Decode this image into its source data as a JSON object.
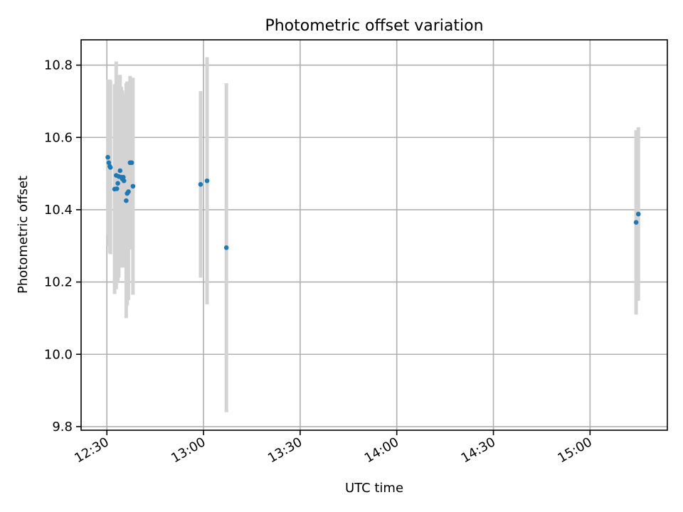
{
  "chart_data": {
    "type": "scatter",
    "title": "Photometric offset variation",
    "xlabel": "UTC time",
    "ylabel": "Photometric offset",
    "x_is_time": true,
    "xlim": [
      "12:22",
      "15:24"
    ],
    "ylim": [
      9.79,
      10.87
    ],
    "xticks": [
      "12:30",
      "13:00",
      "13:30",
      "14:00",
      "14:30",
      "15:00"
    ],
    "xtick_labels": [
      "12:30",
      "13:00",
      "13:30",
      "14:00",
      "14:30",
      "15:00"
    ],
    "yticks": [
      9.8,
      10.0,
      10.2,
      10.4,
      10.6,
      10.8
    ],
    "ytick_labels": [
      "9.8",
      "10.0",
      "10.2",
      "10.4",
      "10.6",
      "10.8"
    ],
    "grid": true,
    "marker_color": "#1f77b4",
    "errorbar_color": "#d3d3d3",
    "points": [
      {
        "x": "12:30:18",
        "y": 10.545,
        "err": 0.215
      },
      {
        "x": "12:30:36",
        "y": 10.53,
        "err": 0.23
      },
      {
        "x": "12:30:54",
        "y": 10.52,
        "err": 0.24
      },
      {
        "x": "12:31:06",
        "y": 10.517,
        "err": 0.24
      },
      {
        "x": "12:32:24",
        "y": 10.457,
        "err": 0.29
      },
      {
        "x": "12:32:54",
        "y": 10.495,
        "err": 0.315
      },
      {
        "x": "12:33:06",
        "y": 10.458,
        "err": 0.26
      },
      {
        "x": "12:33:24",
        "y": 10.473,
        "err": 0.27
      },
      {
        "x": "12:33:42",
        "y": 10.492,
        "err": 0.28
      },
      {
        "x": "12:34:06",
        "y": 10.508,
        "err": 0.265
      },
      {
        "x": "12:34:30",
        "y": 10.49,
        "err": 0.25
      },
      {
        "x": "12:34:48",
        "y": 10.485,
        "err": 0.245
      },
      {
        "x": "12:35:06",
        "y": 10.49,
        "err": 0.23
      },
      {
        "x": "12:35:18",
        "y": 10.48,
        "err": 0.24
      },
      {
        "x": "12:36:00",
        "y": 10.425,
        "err": 0.325
      },
      {
        "x": "12:36:18",
        "y": 10.445,
        "err": 0.31
      },
      {
        "x": "12:36:42",
        "y": 10.45,
        "err": 0.3
      },
      {
        "x": "12:37:12",
        "y": 10.53,
        "err": 0.24
      },
      {
        "x": "12:37:42",
        "y": 10.53,
        "err": 0.235
      },
      {
        "x": "12:38:06",
        "y": 10.465,
        "err": 0.3
      },
      {
        "x": "12:59:06",
        "y": 10.47,
        "err": 0.258
      },
      {
        "x": "13:01:06",
        "y": 10.48,
        "err": 0.342
      },
      {
        "x": "13:07:06",
        "y": 10.295,
        "err": 0.455
      },
      {
        "x": "15:14:18",
        "y": 10.365,
        "err": 0.255
      },
      {
        "x": "15:15:00",
        "y": 10.388,
        "err": 0.24
      }
    ]
  }
}
